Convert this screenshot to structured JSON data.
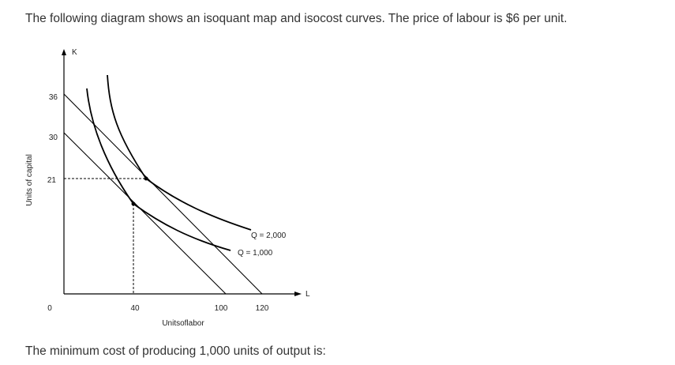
{
  "question": {
    "intro": "The following diagram shows an isoquant map and isocost curves. The price of labour is $6 per unit.",
    "prompt": "The minimum cost of producing 1,000 units of output is:"
  },
  "diagram": {
    "y_axis_letter": "K",
    "x_axis_letter": "L",
    "y_axis_title": "Units of capital",
    "x_axis_title": "Unitsoflabor",
    "origin_label": "0",
    "y_ticks": [
      "36",
      "30",
      "21"
    ],
    "x_ticks": [
      "40",
      "100",
      "120"
    ],
    "isoquants": [
      {
        "label": "Q = 2,000",
        "output": 2000
      },
      {
        "label": "Q = 1,000",
        "output": 1000
      }
    ],
    "isocost_lines": [
      {
        "k_intercept": 36,
        "l_intercept": 120
      },
      {
        "k_intercept": 30,
        "l_intercept": 100
      }
    ],
    "tangency_points": [
      {
        "isoquant": "Q = 2,000",
        "capital": 21
      },
      {
        "isoquant": "Q = 1,000",
        "labour": 40
      }
    ]
  }
}
